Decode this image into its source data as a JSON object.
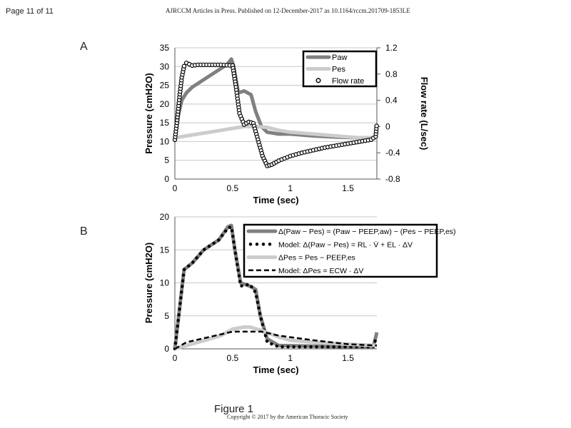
{
  "header": {
    "page": "Page 11 of 11",
    "journal": "AJRCCM Articles in Press. Published on 12-December-2017 as 10.1164/rccm.201709-1853LE"
  },
  "footer": {
    "figure": "Figure 1",
    "copyright": "Copyright © 2017 by the American Thoracic Society"
  },
  "chart_data": [
    {
      "panel": "A",
      "type": "line",
      "xlabel": "Time (sec)",
      "ylabel": "Pressure (cmH2O)",
      "y2label": "Flow rate (L/sec)",
      "xlim": [
        0,
        1.75
      ],
      "ylim": [
        0,
        35
      ],
      "y2lim": [
        -0.8,
        1.2
      ],
      "xticks": [
        "0",
        "0.5",
        "1",
        "1.5"
      ],
      "yticks": [
        "0",
        "5",
        "10",
        "15",
        "20",
        "25",
        "30",
        "35"
      ],
      "y2ticks": [
        "-0.8",
        "-0.4",
        "0",
        "0.4",
        "0.8",
        "1.2"
      ],
      "grid": "horizontal",
      "legend": "top-right",
      "series": [
        {
          "name": "Paw",
          "color": "#808080",
          "style": "thick",
          "x": [
            0,
            0.03,
            0.06,
            0.1,
            0.15,
            0.25,
            0.35,
            0.45,
            0.49,
            0.51,
            0.55,
            0.6,
            0.66,
            0.7,
            0.75,
            0.8,
            0.9,
            1.0,
            1.2,
            1.4,
            1.6,
            1.75
          ],
          "y": [
            10.5,
            17,
            21,
            23,
            24.5,
            26.5,
            28.5,
            30.5,
            32,
            30,
            23,
            23.5,
            22.5,
            18,
            14,
            12.5,
            12,
            12,
            11.5,
            11.2,
            11,
            11
          ]
        },
        {
          "name": "Pes",
          "color": "#cccccc",
          "style": "thick",
          "x": [
            0,
            0.1,
            0.2,
            0.3,
            0.4,
            0.5,
            0.6,
            0.7,
            0.8,
            0.9,
            1.0,
            1.2,
            1.4,
            1.6,
            1.75
          ],
          "y": [
            11,
            11.5,
            12,
            12.5,
            13,
            13.5,
            14,
            14,
            13.8,
            13,
            12.5,
            12,
            11.5,
            11,
            11
          ]
        },
        {
          "name": "Flow rate",
          "axis": "right",
          "color": "#000000",
          "style": "open-circles",
          "x": [
            0,
            0.02,
            0.04,
            0.06,
            0.08,
            0.1,
            0.15,
            0.2,
            0.3,
            0.4,
            0.5,
            0.53,
            0.56,
            0.6,
            0.64,
            0.68,
            0.72,
            0.76,
            0.8,
            0.84,
            0.9,
            1.0,
            1.1,
            1.2,
            1.3,
            1.4,
            1.5,
            1.6,
            1.7,
            1.74,
            1.75
          ],
          "y": [
            -0.2,
            0.1,
            0.45,
            0.75,
            0.92,
            0.97,
            0.93,
            0.94,
            0.94,
            0.94,
            0.93,
            0.6,
            0.2,
            0.03,
            0.07,
            0.05,
            -0.2,
            -0.45,
            -0.6,
            -0.58,
            -0.52,
            -0.45,
            -0.4,
            -0.36,
            -0.32,
            -0.29,
            -0.26,
            -0.23,
            -0.2,
            -0.15,
            0.05
          ]
        }
      ]
    },
    {
      "panel": "B",
      "type": "line",
      "xlabel": "Time (sec)",
      "ylabel": "Pressure (cmH2O)",
      "xlim": [
        0,
        1.75
      ],
      "ylim": [
        0,
        20
      ],
      "xticks": [
        "0",
        "0.5",
        "1",
        "1.5"
      ],
      "yticks": [
        "0",
        "5",
        "10",
        "15",
        "20"
      ],
      "grid": "horizontal",
      "legend": "top-right",
      "series": [
        {
          "name": "Δ(Paw − Pes) = (Paw − PEEP,aw) − (Pes − PEEP,es)",
          "color": "#808080",
          "style": "thick",
          "x": [
            0,
            0.04,
            0.08,
            0.15,
            0.25,
            0.38,
            0.46,
            0.49,
            0.52,
            0.57,
            0.65,
            0.7,
            0.74,
            0.8,
            0.9,
            1.2,
            1.5,
            1.72,
            1.75
          ],
          "y": [
            0,
            6,
            12,
            13,
            15,
            16.5,
            18.5,
            18.7,
            15,
            10,
            9.5,
            9,
            5,
            1.5,
            0.5,
            0.4,
            0.3,
            0.3,
            2.5
          ]
        },
        {
          "name": "Model: Δ(Paw − Pes) = RL · V̇ + EL · ΔV",
          "color": "#000000",
          "style": "dots",
          "x": [
            0,
            0.04,
            0.08,
            0.15,
            0.25,
            0.38,
            0.46,
            0.49,
            0.52,
            0.57,
            0.65,
            0.7,
            0.74,
            0.8,
            0.9,
            1.2,
            1.5,
            1.72,
            1.75
          ],
          "y": [
            0,
            6,
            12,
            13,
            15,
            16.5,
            18.3,
            18.5,
            15,
            9.5,
            9.8,
            8.5,
            5,
            1,
            0.3,
            0.3,
            0.3,
            0.3,
            2
          ]
        },
        {
          "name": "ΔPes = Pes − PEEP,es",
          "color": "#cccccc",
          "style": "thick",
          "x": [
            0,
            0.2,
            0.4,
            0.5,
            0.6,
            0.65,
            0.75,
            0.9,
            1.0,
            1.2,
            1.5,
            1.75
          ],
          "y": [
            0,
            1,
            2,
            3,
            3.3,
            3.3,
            2.8,
            1.8,
            1.3,
            1,
            0.7,
            0.5
          ]
        },
        {
          "name": "Model: ΔPes = ECW · ΔV",
          "color": "#000000",
          "style": "dashed",
          "x": [
            0,
            0.1,
            0.3,
            0.5,
            0.75,
            0.9,
            1.2,
            1.5,
            1.75
          ],
          "y": [
            0,
            1,
            1.8,
            2.6,
            2.6,
            2,
            1.3,
            0.7,
            0.5
          ]
        }
      ]
    }
  ]
}
